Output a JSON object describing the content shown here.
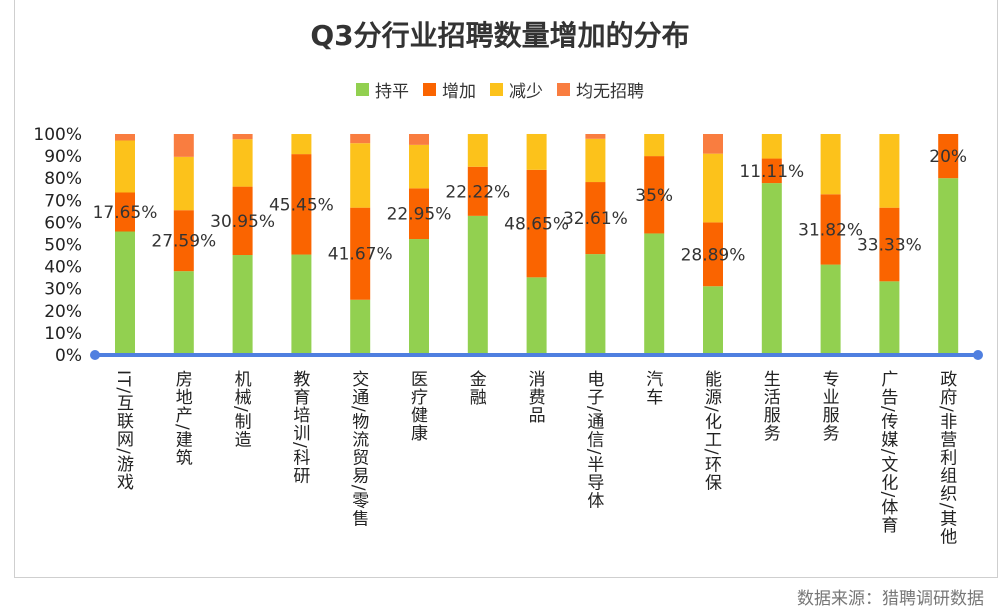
{
  "chart_data": {
    "type": "bar",
    "stacked": true,
    "title": "Q3分行业招聘数量增加的分布",
    "source": "数据来源：猎聘调研数据",
    "legend_position": "top",
    "ylim": [
      0,
      100
    ],
    "yticks": [
      "0%",
      "10%",
      "20%",
      "30%",
      "40%",
      "50%",
      "60%",
      "70%",
      "80%",
      "90%",
      "100%"
    ],
    "grid": false,
    "categories": [
      "IT/互联网/游戏",
      "房地产/建筑",
      "机械/制造",
      "教育培训/科研",
      "交通/物流贸易/零售",
      "医疗健康",
      "金融",
      "消费品",
      "电子/通信/半导体",
      "汽车",
      "能源/化工/环保",
      "生活服务",
      "专业服务",
      "广告/传媒/文化/体育",
      "政府/非营利组织/其他"
    ],
    "series": [
      {
        "name": "持平",
        "color": "#92d050",
        "values": [
          55.88,
          37.93,
          45.24,
          45.45,
          25.0,
          52.46,
          62.96,
          35.14,
          45.65,
          55.0,
          31.11,
          77.78,
          40.91,
          33.33,
          80.0
        ]
      },
      {
        "name": "增加",
        "color": "#fa6400",
        "values": [
          17.65,
          27.59,
          30.95,
          45.45,
          41.67,
          22.95,
          22.22,
          48.65,
          32.61,
          35.0,
          28.89,
          11.11,
          31.82,
          33.33,
          20.0
        ],
        "labels": [
          "17.65%",
          "27.59%",
          "30.95%",
          "45.45%",
          "41.67%",
          "22.95%",
          "22.22%",
          "48.65%",
          "32.61%",
          "35%",
          "28.89%",
          "11.11%",
          "31.82%",
          "33.33%",
          "20%"
        ]
      },
      {
        "name": "减少",
        "color": "#fcc21b",
        "values": [
          23.53,
          24.14,
          21.43,
          9.09,
          29.17,
          19.67,
          14.81,
          16.22,
          19.57,
          10.0,
          31.11,
          11.11,
          27.27,
          33.33,
          0
        ]
      },
      {
        "name": "均无招聘",
        "color": "#f97d40",
        "values": [
          2.94,
          10.34,
          2.38,
          0,
          4.17,
          4.92,
          0,
          0,
          2.17,
          0,
          8.89,
          0,
          0,
          0,
          0
        ]
      }
    ],
    "axis_color": "#4f7fe0"
  }
}
